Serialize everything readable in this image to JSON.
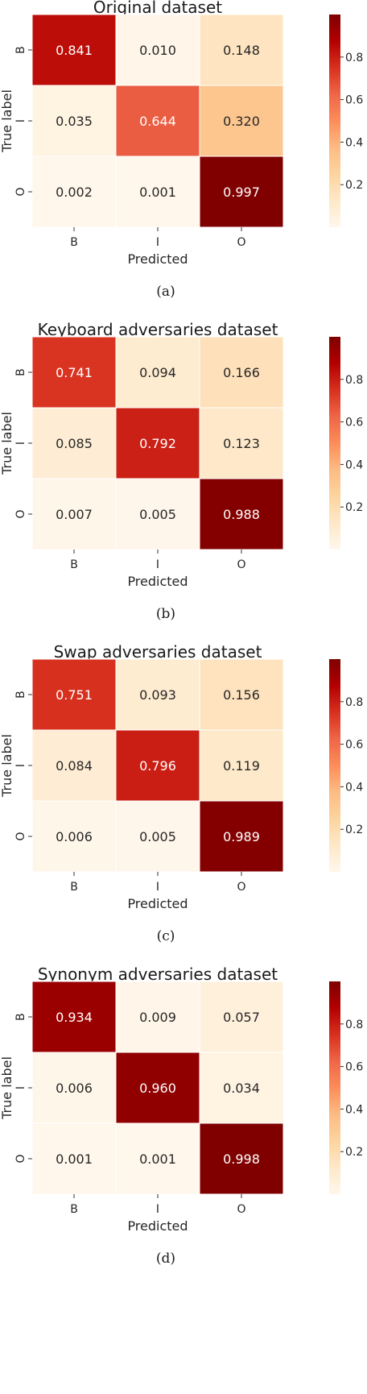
{
  "chart_data": [
    {
      "type": "heatmap",
      "title": "Original dataset",
      "xlabel": "Predicted",
      "ylabel": "True label",
      "x_categories": [
        "B",
        "I",
        "O"
      ],
      "y_categories": [
        "B",
        "I",
        "O"
      ],
      "values": [
        [
          0.841,
          0.01,
          0.148
        ],
        [
          0.035,
          0.644,
          0.32
        ],
        [
          0.002,
          0.001,
          0.997
        ]
      ],
      "value_labels": [
        [
          "0.841",
          "0.010",
          "0.148"
        ],
        [
          "0.035",
          "0.644",
          "0.320"
        ],
        [
          "0.002",
          "0.001",
          "0.997"
        ]
      ],
      "colorbar": {
        "colormap": "OrRd",
        "range": [
          0.0,
          1.0
        ],
        "ticks": [
          "0.2",
          "0.4",
          "0.6",
          "0.8"
        ]
      },
      "caption": "(a)"
    },
    {
      "type": "heatmap",
      "title": "Keyboard adversaries dataset",
      "xlabel": "Predicted",
      "ylabel": "True label",
      "x_categories": [
        "B",
        "I",
        "O"
      ],
      "y_categories": [
        "B",
        "I",
        "O"
      ],
      "values": [
        [
          0.741,
          0.094,
          0.166
        ],
        [
          0.085,
          0.792,
          0.123
        ],
        [
          0.007,
          0.005,
          0.988
        ]
      ],
      "value_labels": [
        [
          "0.741",
          "0.094",
          "0.166"
        ],
        [
          "0.085",
          "0.792",
          "0.123"
        ],
        [
          "0.007",
          "0.005",
          "0.988"
        ]
      ],
      "colorbar": {
        "colormap": "OrRd",
        "range": [
          0.0,
          1.0
        ],
        "ticks": [
          "0.2",
          "0.4",
          "0.6",
          "0.8"
        ]
      },
      "caption": "(b)"
    },
    {
      "type": "heatmap",
      "title": "Swap adversaries dataset",
      "xlabel": "Predicted",
      "ylabel": "True label",
      "x_categories": [
        "B",
        "I",
        "O"
      ],
      "y_categories": [
        "B",
        "I",
        "O"
      ],
      "values": [
        [
          0.751,
          0.093,
          0.156
        ],
        [
          0.084,
          0.796,
          0.119
        ],
        [
          0.006,
          0.005,
          0.989
        ]
      ],
      "value_labels": [
        [
          "0.751",
          "0.093",
          "0.156"
        ],
        [
          "0.084",
          "0.796",
          "0.119"
        ],
        [
          "0.006",
          "0.005",
          "0.989"
        ]
      ],
      "colorbar": {
        "colormap": "OrRd",
        "range": [
          0.0,
          1.0
        ],
        "ticks": [
          "0.2",
          "0.4",
          "0.6",
          "0.8"
        ]
      },
      "caption": "(c)"
    },
    {
      "type": "heatmap",
      "title": "Synonym adversaries dataset",
      "xlabel": "Predicted",
      "ylabel": "True label",
      "x_categories": [
        "B",
        "I",
        "O"
      ],
      "y_categories": [
        "B",
        "I",
        "O"
      ],
      "values": [
        [
          0.934,
          0.009,
          0.057
        ],
        [
          0.006,
          0.96,
          0.034
        ],
        [
          0.001,
          0.001,
          0.998
        ]
      ],
      "value_labels": [
        [
          "0.934",
          "0.009",
          "0.057"
        ],
        [
          "0.006",
          "0.960",
          "0.034"
        ],
        [
          "0.001",
          "0.001",
          "0.998"
        ]
      ],
      "colorbar": {
        "colormap": "OrRd",
        "range": [
          0.0,
          1.0
        ],
        "ticks": [
          "0.2",
          "0.4",
          "0.6",
          "0.8"
        ]
      },
      "caption": "(d)"
    }
  ]
}
